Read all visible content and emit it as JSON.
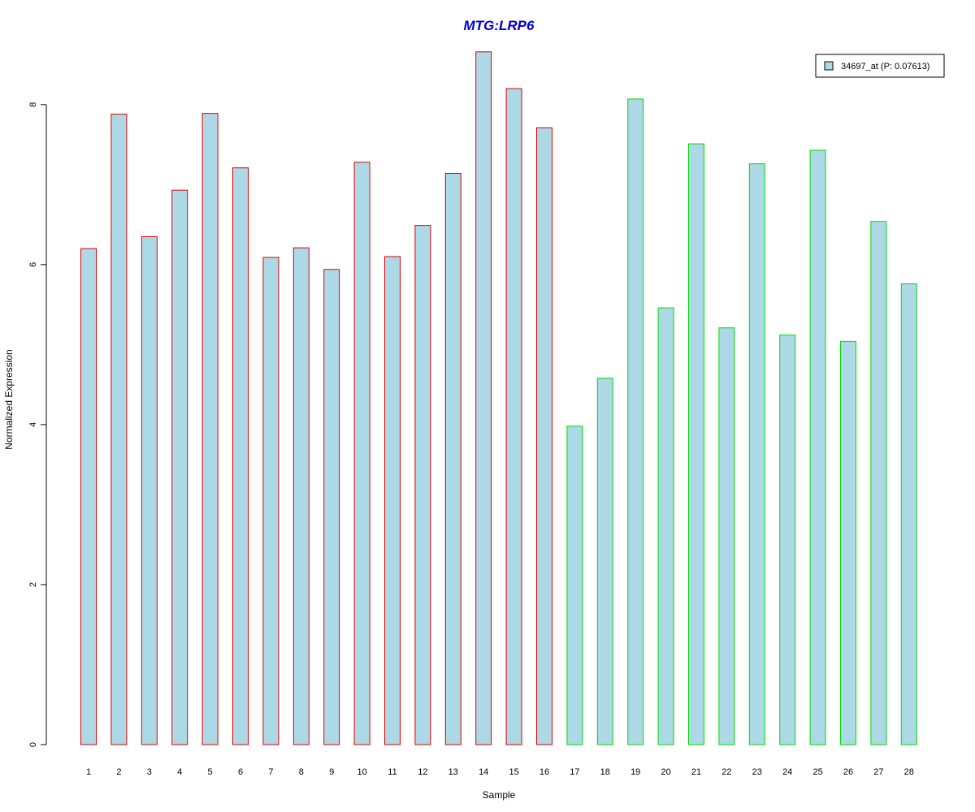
{
  "chart_data": {
    "type": "bar",
    "title": "MTG:LRP6",
    "title_color": "#0000CC",
    "xlabel": "Sample",
    "ylabel": "Normalized Expression",
    "ylim": [
      0,
      8.8
    ],
    "yticks": [
      0,
      2,
      4,
      6,
      8
    ],
    "grid": false,
    "legend_position": "top-right",
    "fill_color": "#ADD8E6",
    "categories": [
      "1",
      "2",
      "3",
      "4",
      "5",
      "6",
      "7",
      "8",
      "9",
      "10",
      "11",
      "12",
      "13",
      "14",
      "15",
      "16",
      "17",
      "18",
      "19",
      "20",
      "21",
      "22",
      "23",
      "24",
      "25",
      "26",
      "27",
      "28"
    ],
    "values": [
      6.2,
      7.88,
      6.35,
      6.93,
      7.89,
      7.21,
      6.09,
      6.21,
      5.94,
      7.28,
      6.1,
      6.49,
      7.14,
      8.66,
      8.2,
      7.71,
      3.98,
      4.58,
      8.07,
      5.46,
      7.51,
      5.21,
      7.26,
      5.12,
      7.43,
      5.04,
      6.54,
      5.76
    ],
    "groups": [
      {
        "border_color": "#DD0000",
        "count": 16
      },
      {
        "border_color": "#00DD00",
        "count": 12
      }
    ],
    "series": [
      {
        "name": "34697_at (P: 0.07613)"
      }
    ]
  }
}
